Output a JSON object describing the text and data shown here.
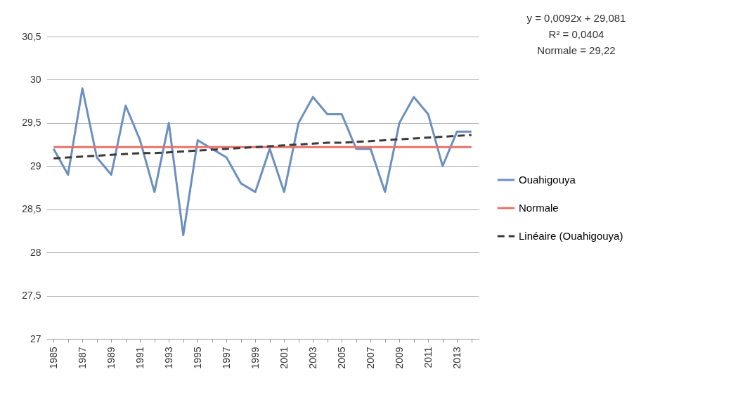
{
  "chart_data": {
    "type": "line",
    "categories": [
      "1985",
      null,
      "1987",
      null,
      "1989",
      null,
      "1991",
      null,
      "1993",
      null,
      "1995",
      null,
      "1997",
      null,
      "1999",
      null,
      "2001",
      null,
      "2003",
      null,
      "2005",
      null,
      "2007",
      null,
      "2009",
      null,
      "2011",
      null,
      "2013",
      null
    ],
    "series": [
      {
        "name": "Ouahigouya",
        "color": "#6b90c0",
        "line_style": "solid",
        "values": [
          29.2,
          28.9,
          29.9,
          29.1,
          28.9,
          29.7,
          29.3,
          28.7,
          29.5,
          28.2,
          29.3,
          29.2,
          29.1,
          28.8,
          28.7,
          29.2,
          28.7,
          29.5,
          29.8,
          29.6,
          29.6,
          29.2,
          29.2,
          28.7,
          29.5,
          29.8,
          29.6,
          29.0,
          29.4,
          29.4
        ]
      },
      {
        "name": "Normale",
        "color": "#e8736c",
        "line_style": "solid",
        "values": [
          29.22,
          29.22,
          29.22,
          29.22,
          29.22,
          29.22,
          29.22,
          29.22,
          29.22,
          29.22,
          29.22,
          29.22,
          29.22,
          29.22,
          29.22,
          29.22,
          29.22,
          29.22,
          29.22,
          29.22,
          29.22,
          29.22,
          29.22,
          29.22,
          29.22,
          29.22,
          29.22,
          29.22,
          29.22,
          29.22
        ]
      },
      {
        "name": "Linéaire (Ouahigouya)",
        "color": "#3a3a3a",
        "line_style": "dashed",
        "values": [
          29.09,
          29.1,
          29.11,
          29.12,
          29.13,
          29.14,
          29.15,
          29.15,
          29.16,
          29.17,
          29.18,
          29.19,
          29.2,
          29.21,
          29.22,
          29.23,
          29.24,
          29.25,
          29.26,
          29.27,
          29.27,
          29.28,
          29.29,
          29.3,
          29.31,
          29.32,
          29.33,
          29.34,
          29.35,
          29.36
        ]
      }
    ],
    "ylim": [
      27,
      30.5
    ],
    "yticks": [
      27,
      {
        "value": 27.5,
        "label": "27,5"
      },
      28,
      {
        "value": 28.5,
        "label": "28,5"
      },
      29,
      {
        "value": 29.5,
        "label": "29,5"
      },
      30,
      {
        "value": 30.5,
        "label": "30,5"
      }
    ],
    "grid": "y",
    "legend": "right",
    "marker": "none",
    "annotations": [
      "y = 0,0092x + 29,081",
      "R² = 0,0404",
      "Normale = 29,22"
    ]
  }
}
